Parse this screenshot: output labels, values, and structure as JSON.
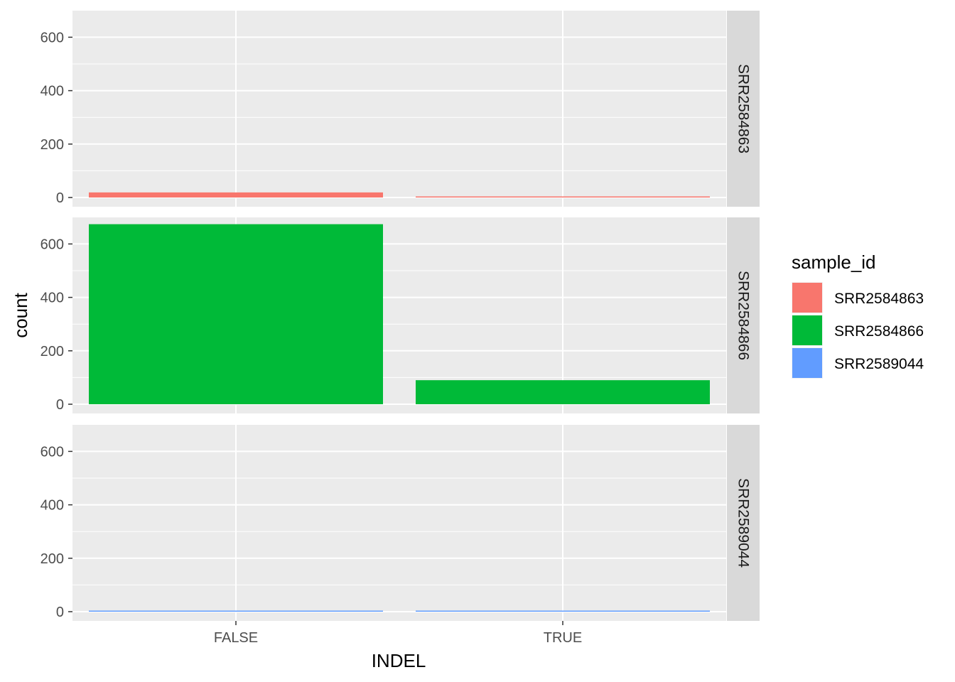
{
  "chart_data": {
    "type": "bar",
    "facet": "rows",
    "categories": [
      "FALSE",
      "TRUE"
    ],
    "xlabel": "INDEL",
    "ylabel": "count",
    "ylim": [
      0,
      700
    ],
    "yticks": [
      0,
      200,
      400,
      600
    ],
    "grid": true,
    "legend": {
      "title": "sample_id",
      "placement": "right",
      "entries": [
        "SRR2584863",
        "SRR2584866",
        "SRR2589044"
      ]
    },
    "panels": [
      {
        "label": "SRR2584863",
        "color": "#F8766D",
        "values": [
          19,
          3
        ]
      },
      {
        "label": "SRR2584866",
        "color": "#00BA38",
        "values": [
          674,
          90
        ]
      },
      {
        "label": "SRR2589044",
        "color": "#619CFF",
        "values": [
          2,
          2
        ]
      }
    ]
  }
}
